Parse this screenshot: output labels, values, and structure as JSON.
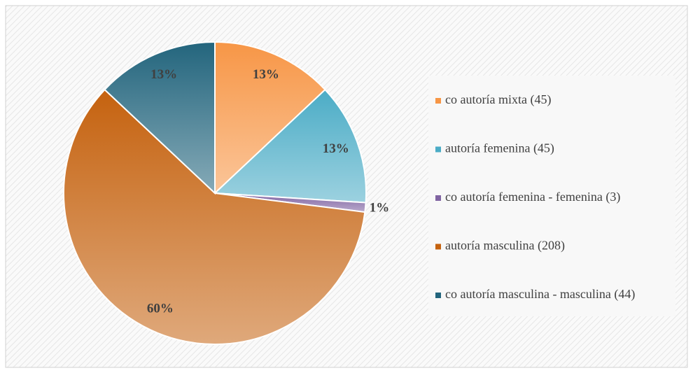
{
  "chart_data": {
    "type": "pie",
    "categories": [
      "co autoría mixta (45)",
      "autoría femenina (45)",
      "co autoría femenina - femenina (3)",
      "autoría masculina (208)",
      "co autoría masculina - masculina (44)"
    ],
    "values": [
      13,
      13,
      1,
      60,
      13
    ],
    "value_labels": [
      "13%",
      "13%",
      "1%",
      "60%",
      "13%"
    ],
    "colors": [
      "#f79646",
      "#4bacc6",
      "#8064a2",
      "#c5620f",
      "#23657d"
    ],
    "legend": "right"
  }
}
